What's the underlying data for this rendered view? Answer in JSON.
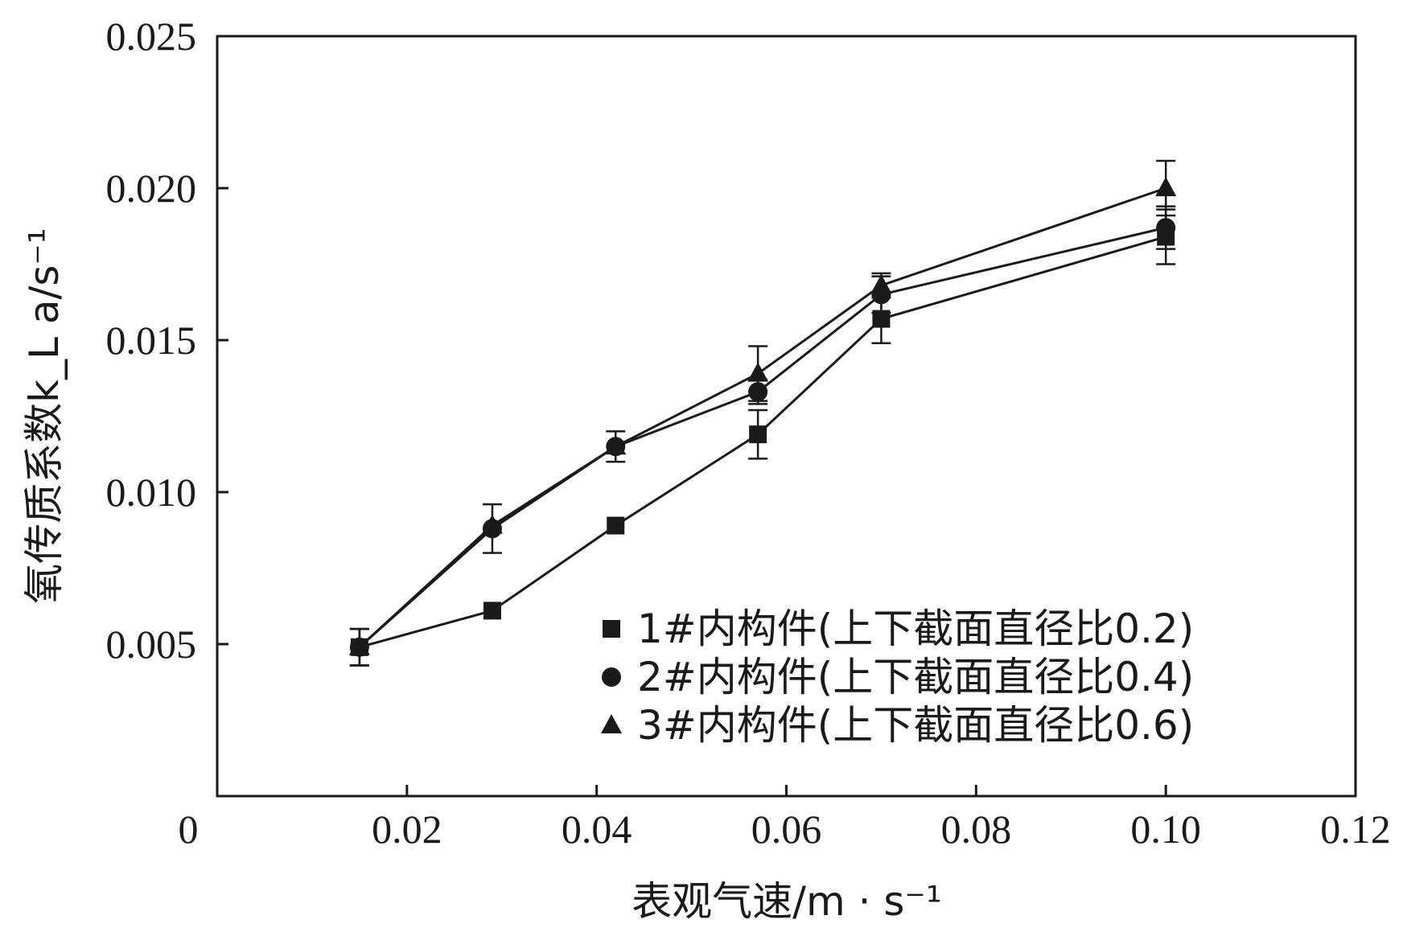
{
  "chart_data": {
    "type": "line",
    "xlabel": "表观气速/m · s⁻¹",
    "ylabel": "氧传质系数k_L a/s⁻¹",
    "xlim": [
      0,
      0.12
    ],
    "ylim": [
      0,
      0.025
    ],
    "x_ticks": [
      "0",
      "0.02",
      "0.04",
      "0.06",
      "0.08",
      "0.10",
      "0.12"
    ],
    "x_tick_values": [
      0,
      0.02,
      0.04,
      0.06,
      0.08,
      0.1,
      0.12
    ],
    "y_ticks": [
      "0.005",
      "0.010",
      "0.015",
      "0.020",
      "0.025"
    ],
    "y_tick_values": [
      0.005,
      0.01,
      0.015,
      0.02,
      0.025
    ],
    "grid": false,
    "legend_position": "bottom-right",
    "x": [
      0.015,
      0.029,
      0.042,
      0.057,
      0.07,
      0.1
    ],
    "series": [
      {
        "name": "1#内构件(上下截面直径比0.2)",
        "marker": "square",
        "values": [
          0.0049,
          0.0061,
          0.0089,
          0.0119,
          0.0157,
          0.0184
        ],
        "errors": [
          0.0006,
          0.0,
          0.0,
          0.0008,
          0.0008,
          0.0009
        ]
      },
      {
        "name": "2#内构件(上下截面直径比0.4)",
        "marker": "circle",
        "values": [
          0.0049,
          0.0088,
          0.0115,
          0.0133,
          0.0165,
          0.0187
        ],
        "errors": [
          0.0006,
          0.0008,
          0.0005,
          0.0004,
          0.0006,
          0.0007
        ]
      },
      {
        "name": "3#内构件(上下截面直径比0.6)",
        "marker": "triangle",
        "values": [
          0.0049,
          0.0089,
          0.0115,
          0.0139,
          0.0168,
          0.02
        ],
        "errors": [
          0.0006,
          0.0,
          0.0,
          0.0009,
          0.0004,
          0.0009
        ]
      }
    ],
    "colors": {
      "ink": "#1a1a1a",
      "background": "#ffffff"
    }
  }
}
